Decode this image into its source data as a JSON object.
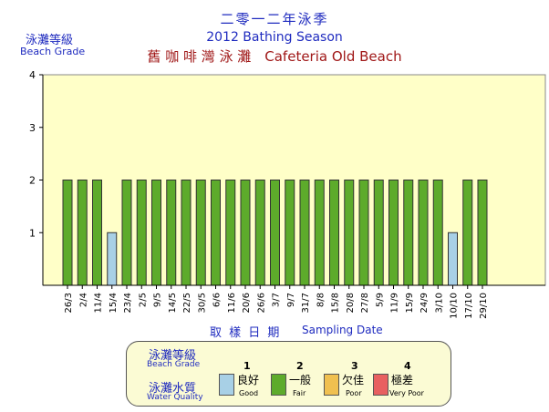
{
  "header": {
    "title_zh": "二零一二年泳季",
    "title_en": "2012 Bathing Season",
    "beach": "舊 咖 啡 灣 泳 灘　Cafeteria Old Beach"
  },
  "axis_labels": {
    "y_zh": "泳灘等級",
    "y_en": "Beach Grade",
    "x_zh": "取 樣 日 期",
    "x_en": "Sampling Date"
  },
  "colors": {
    "plot_bg": "#ffffc8",
    "good": "#a8d0e6",
    "fair": "#5dab2b",
    "poor": "#f0c050",
    "very_poor": "#e86060",
    "title_blue": "#1f2bbf",
    "beach_red": "#a01818"
  },
  "chart_data": {
    "type": "bar",
    "categories": [
      "26/3",
      "2/4",
      "11/4",
      "15/4",
      "23/4",
      "2/5",
      "9/5",
      "14/5",
      "22/5",
      "30/5",
      "6/6",
      "11/6",
      "20/6",
      "26/6",
      "3/7",
      "9/7",
      "31/7",
      "8/8",
      "15/8",
      "20/8",
      "27/8",
      "5/9",
      "11/9",
      "15/9",
      "24/9",
      "3/10",
      "10/10",
      "17/10",
      "29/10"
    ],
    "values": [
      2,
      2,
      2,
      1,
      2,
      2,
      2,
      2,
      2,
      2,
      2,
      2,
      2,
      2,
      2,
      2,
      2,
      2,
      2,
      2,
      2,
      2,
      2,
      2,
      2,
      2,
      1,
      2,
      2
    ],
    "ylim": [
      0,
      4
    ],
    "yticks": [
      "1",
      "2",
      "3",
      "4"
    ],
    "grade_colors": {
      "1": "#a8d0e6",
      "2": "#5dab2b",
      "3": "#f0c050",
      "4": "#e86060"
    }
  },
  "legend": {
    "grade_zh": "泳灘等級",
    "grade_en": "Beach Grade",
    "quality_zh": "泳灘水質",
    "quality_en": "Water Quality",
    "items": [
      {
        "num": "1",
        "zh": "良好",
        "en": "Good"
      },
      {
        "num": "2",
        "zh": "一般",
        "en": "Fair"
      },
      {
        "num": "3",
        "zh": "欠佳",
        "en": "Poor"
      },
      {
        "num": "4",
        "zh": "極差",
        "en": "Very Poor"
      }
    ]
  }
}
